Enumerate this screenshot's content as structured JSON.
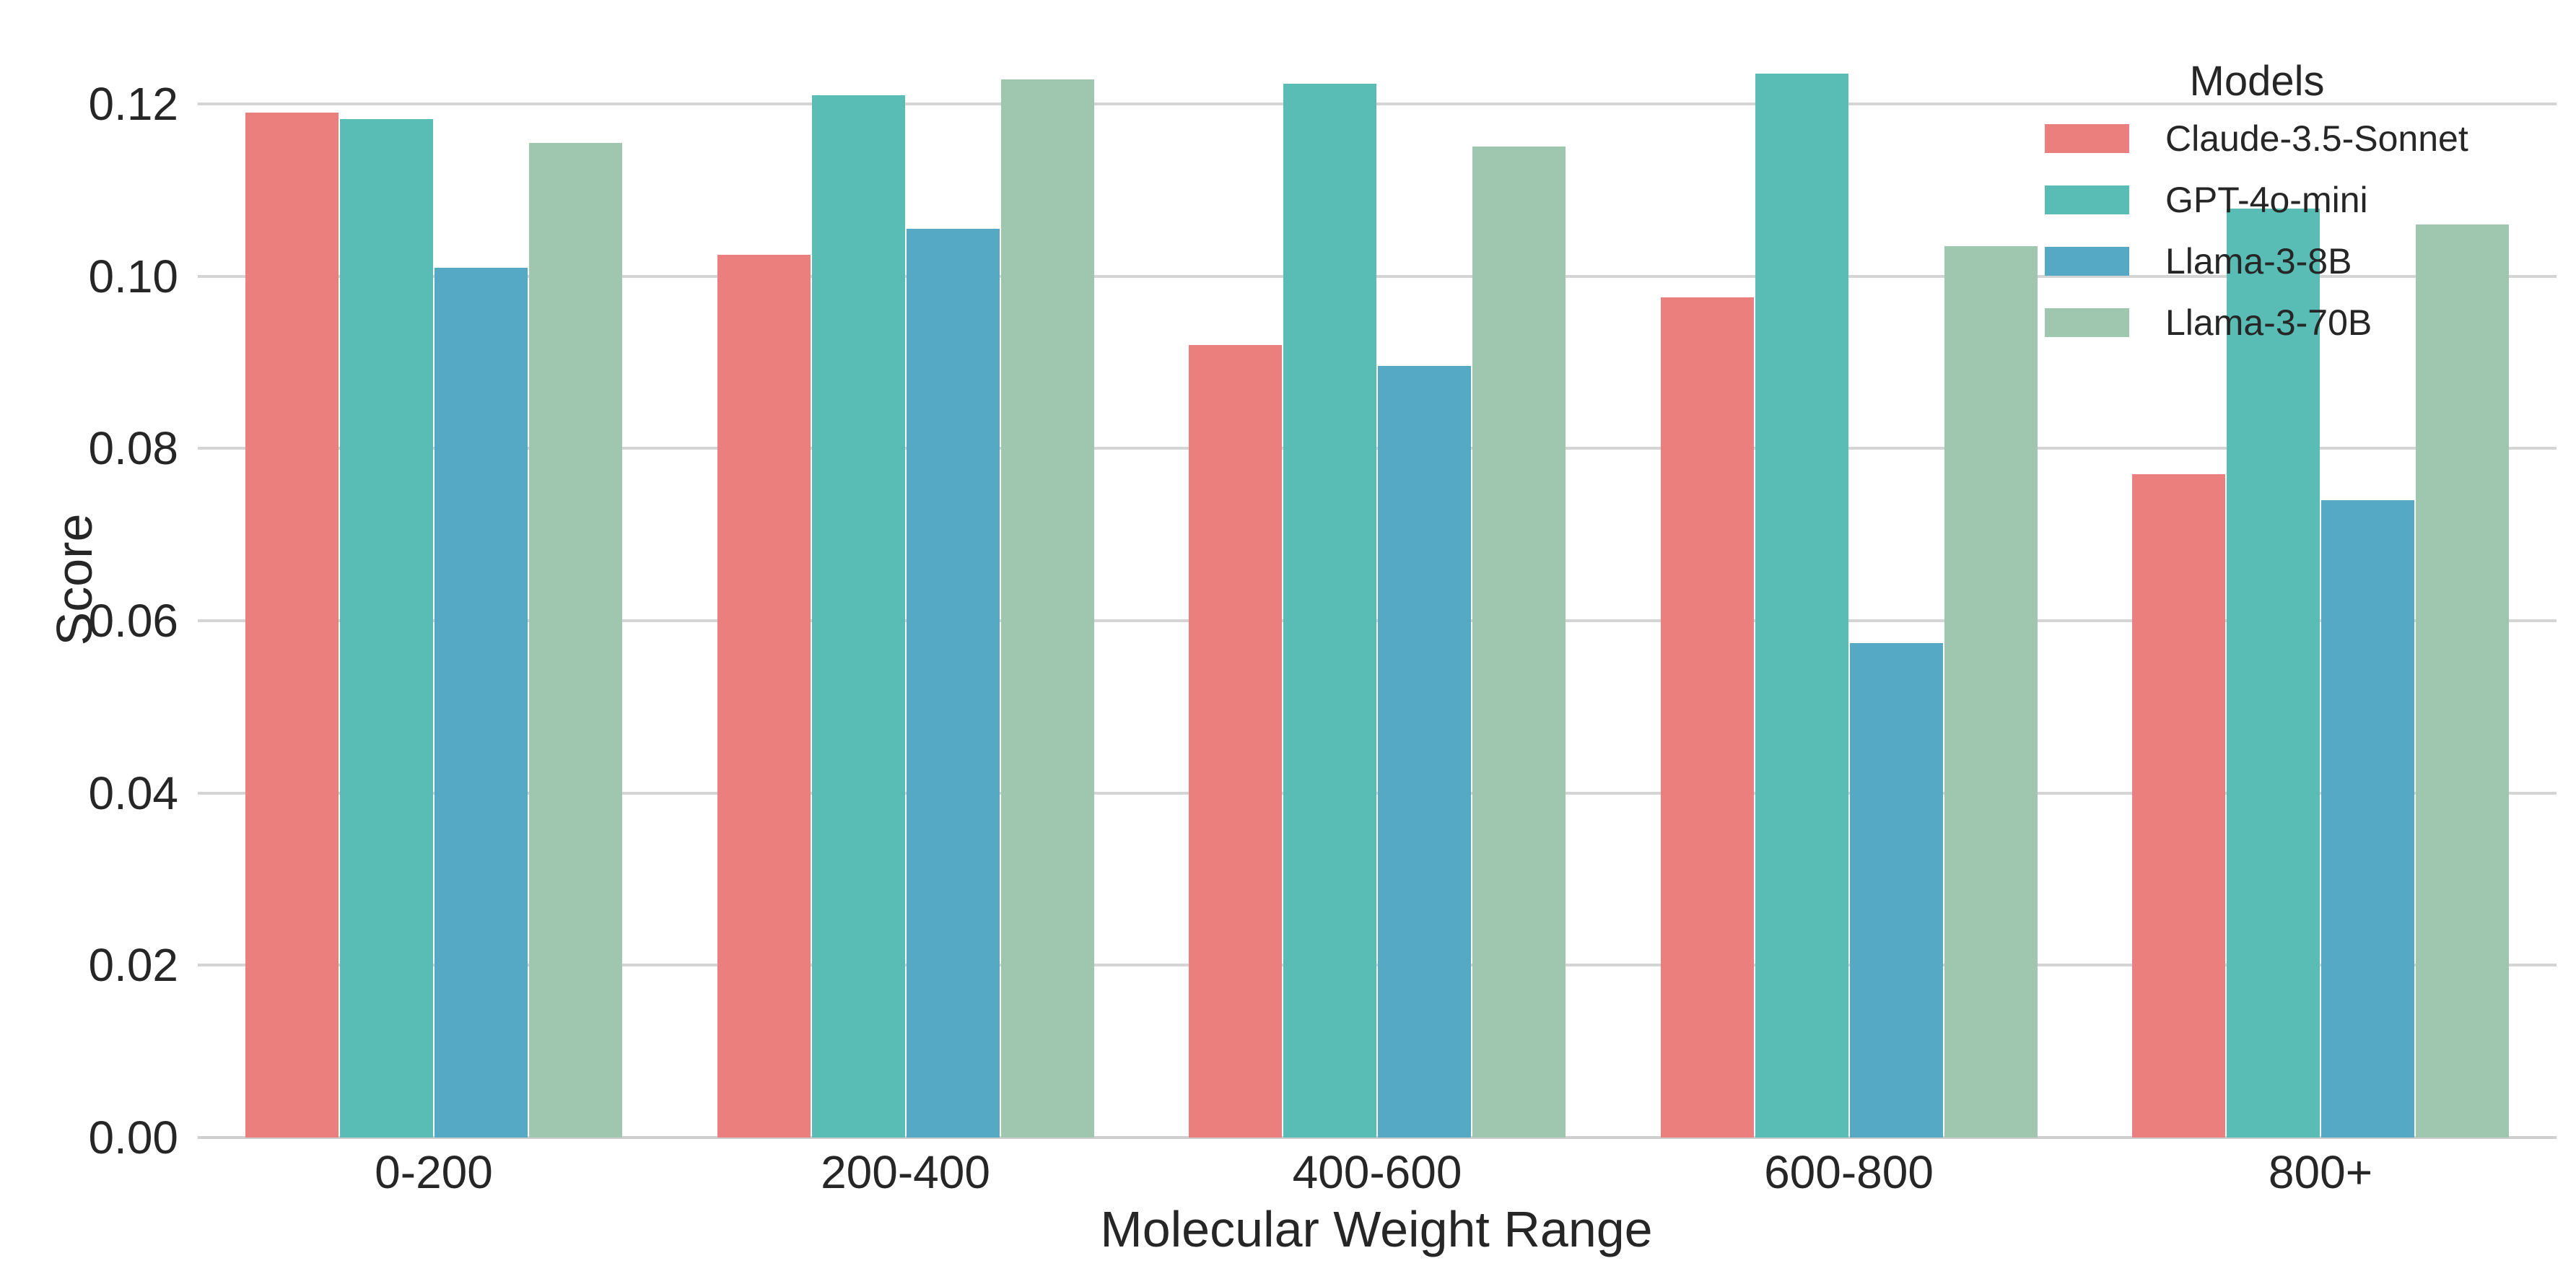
{
  "chart_data": {
    "type": "bar",
    "title": "",
    "categories": [
      "0-200",
      "200-400",
      "400-600",
      "600-800",
      "800+"
    ],
    "series": [
      {
        "name": "Claude-3.5-Sonnet",
        "color": "#EB7F7E",
        "values": [
          0.119,
          0.1025,
          0.092,
          0.0975,
          0.077
        ]
      },
      {
        "name": "GPT-4o-mini",
        "color": "#59BDB6",
        "values": [
          0.1182,
          0.121,
          0.1223,
          0.1235,
          0.1078
        ]
      },
      {
        "name": "Llama-3-8B",
        "color": "#55A9C4",
        "values": [
          0.101,
          0.1055,
          0.0896,
          0.0574,
          0.074
        ]
      },
      {
        "name": "Llama-3-70B",
        "color": "#9FC7B0",
        "values": [
          0.1155,
          0.1228,
          0.115,
          0.1035,
          0.106
        ]
      }
    ],
    "xlabel": "Molecular Weight Range",
    "ylabel": "Score",
    "ylim": [
      0,
      0.13
    ],
    "yticks": [
      0,
      0.02,
      0.04,
      0.06,
      0.08,
      0.1,
      0.12
    ],
    "ytick_labels": [
      "0.00",
      "0.02",
      "0.04",
      "0.06",
      "0.08",
      "0.10",
      "0.12"
    ],
    "legend_title": "Models",
    "legend_position": "upper right",
    "grid": "horizontal",
    "gridline_color": "#D4D4D4",
    "baseline_color": "#CFCFCF",
    "text_color": "#262626",
    "background_color": "#FFFFFF"
  }
}
